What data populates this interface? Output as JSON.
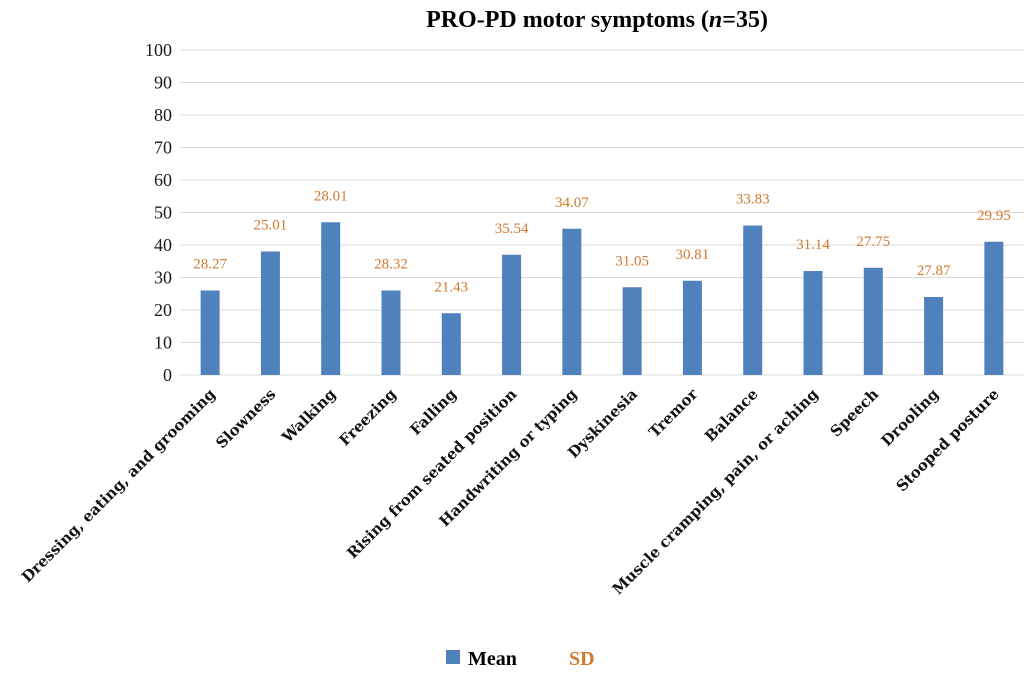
{
  "chart_data": {
    "type": "bar",
    "title_prefix": "PRO-PD motor symptoms (",
    "title_n": "n",
    "title_suffix": "=35)",
    "categories": [
      "Dressing, eating, and grooming",
      "Slowness",
      "Walking",
      "Freezing",
      "Falling",
      "Rising from seated position",
      "Handwriting or typing",
      "Dyskinesia",
      "Tremor",
      "Balance",
      "Muscle cramping, pain, or aching",
      "Speech",
      "Drooling",
      "Stooped posture"
    ],
    "series": [
      {
        "name": "Mean",
        "values": [
          26,
          38,
          47,
          26,
          19,
          37,
          45,
          27,
          29,
          46,
          32,
          33,
          24,
          41
        ]
      },
      {
        "name": "SD",
        "values": [
          "28.27",
          "25.01",
          "28.01",
          "28.32",
          "21.43",
          "35.54",
          "34.07",
          "31.05",
          "30.81",
          "33.83",
          "31.14",
          "27.75",
          "27.87",
          "29.95"
        ]
      }
    ],
    "ylim": [
      0,
      100
    ],
    "yticks": [
      0,
      10,
      20,
      30,
      40,
      50,
      60,
      70,
      80,
      90,
      100
    ],
    "grid": true,
    "legend_position": "bottom",
    "colors": {
      "mean": "#4f81bd",
      "sd": "#d07a2e",
      "grid": "#d9d9d9"
    }
  }
}
